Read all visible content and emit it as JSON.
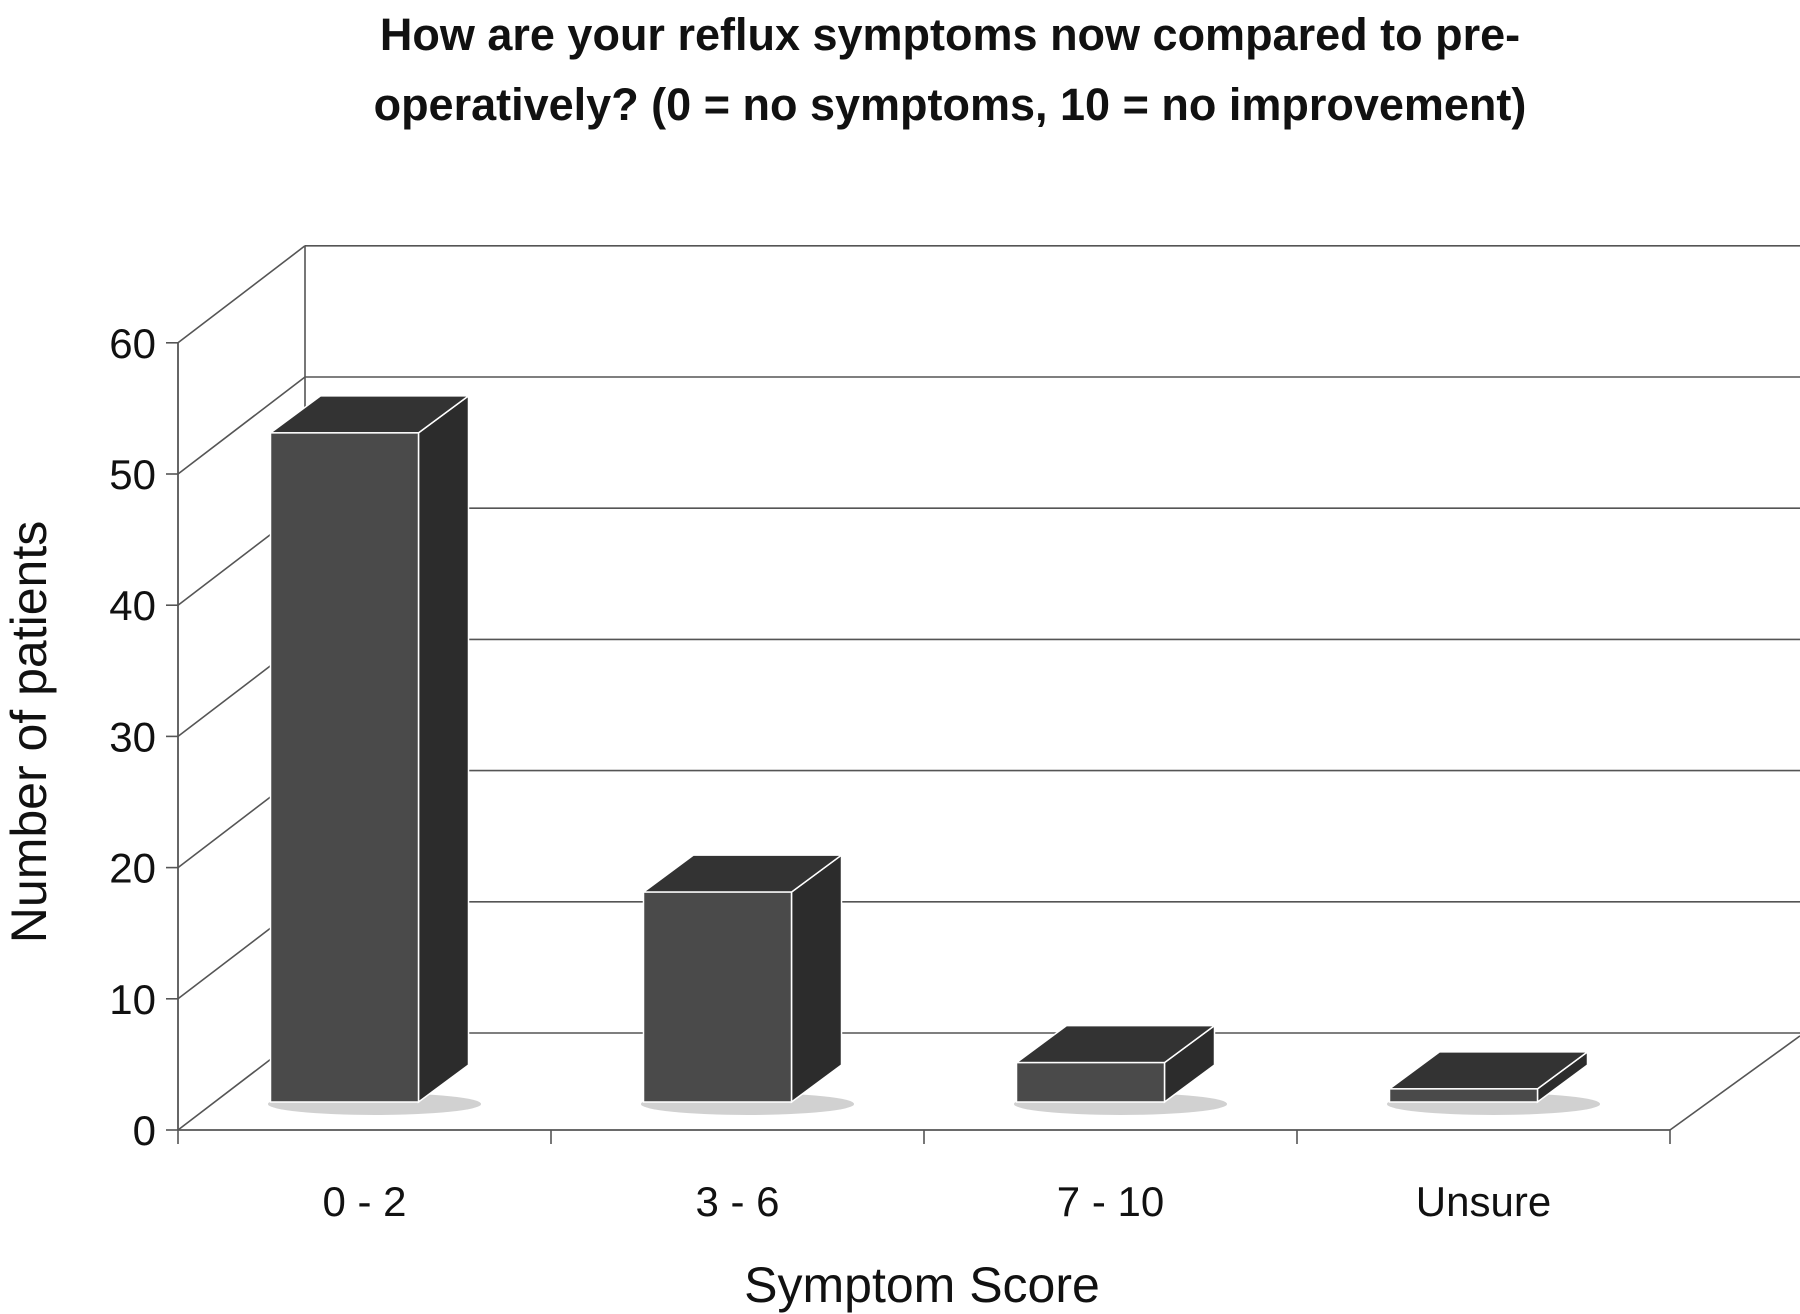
{
  "chart_data": {
    "type": "bar",
    "title": "How are your reflux symptoms now compared to pre-operatively? (0 = no symptoms, 10 = no improvement)",
    "xlabel": "Symptom Score",
    "ylabel": "Number of patients",
    "categories": [
      "0 - 2",
      "3 - 6",
      "7 - 10",
      "Unsure"
    ],
    "values": [
      51,
      16,
      3,
      1
    ],
    "ylim": [
      0,
      60
    ],
    "yticks": [
      "0",
      "10",
      "20",
      "30",
      "40",
      "50",
      "60"
    ],
    "grid": true,
    "legend": "none",
    "style": "3d-column",
    "colors": {
      "bar_front": "#4a4a4a",
      "bar_top": "#333333",
      "bar_side": "#2c2c2c",
      "grid": "#555555"
    }
  }
}
